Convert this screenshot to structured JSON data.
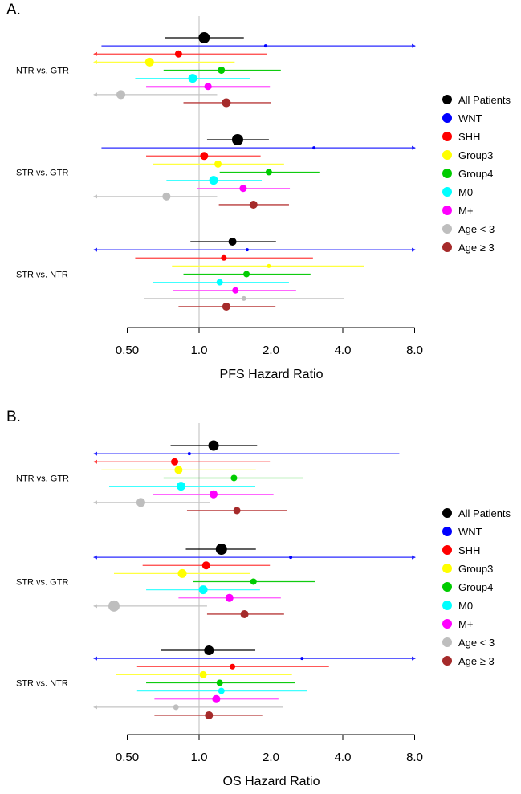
{
  "chart_data": [
    {
      "type": "forest",
      "panel_label": "A.",
      "xlabel": "PFS Hazard Ratio",
      "xscale": "log2",
      "xlim": [
        0.36,
        8.0
      ],
      "xticks": [
        0.5,
        1.0,
        2.0,
        4.0,
        8.0
      ],
      "xtick_labels": [
        "0.50",
        "1.0",
        "2.0",
        "4.0",
        "8.0"
      ],
      "reference_line": 1.0,
      "legend_position": "right",
      "groups": [
        {
          "label": "NTR vs. GTR",
          "rows": [
            {
              "series": "All Patients",
              "hr": 1.05,
              "lo": 0.72,
              "hi": 1.54,
              "weight": 7
            },
            {
              "series": "WNT",
              "hr": 1.9,
              "lo": 0.39,
              "hi": 10,
              "weight": 2
            },
            {
              "series": "SHH",
              "hr": 0.82,
              "lo": 0.3,
              "hi": 1.93,
              "weight": 4.5
            },
            {
              "series": "Group3",
              "hr": 0.62,
              "lo": 0.3,
              "hi": 1.41,
              "weight": 5.5
            },
            {
              "series": "Group4",
              "hr": 1.24,
              "lo": 0.71,
              "hi": 2.2,
              "weight": 4.5
            },
            {
              "series": "M0",
              "hr": 0.94,
              "lo": 0.54,
              "hi": 1.64,
              "weight": 5.5
            },
            {
              "series": "M+",
              "hr": 1.09,
              "lo": 0.6,
              "hi": 1.98,
              "weight": 4.5
            },
            {
              "series": "Age < 3",
              "hr": 0.47,
              "lo": 0.3,
              "hi": 1.19,
              "weight": 5.5
            },
            {
              "series": "Age ≥ 3",
              "hr": 1.3,
              "lo": 0.86,
              "hi": 2.0,
              "weight": 5.5
            }
          ]
        },
        {
          "label": "STR vs. GTR",
          "rows": [
            {
              "series": "All Patients",
              "hr": 1.45,
              "lo": 1.08,
              "hi": 1.96,
              "weight": 7
            },
            {
              "series": "WNT",
              "hr": 3.03,
              "lo": 0.39,
              "hi": 10,
              "weight": 2
            },
            {
              "series": "SHH",
              "hr": 1.05,
              "lo": 0.6,
              "hi": 1.81,
              "weight": 5
            },
            {
              "series": "Group3",
              "hr": 1.2,
              "lo": 0.64,
              "hi": 2.27,
              "weight": 4.5
            },
            {
              "series": "Group4",
              "hr": 1.96,
              "lo": 1.22,
              "hi": 3.19,
              "weight": 4
            },
            {
              "series": "M0",
              "hr": 1.15,
              "lo": 0.73,
              "hi": 1.83,
              "weight": 5.5
            },
            {
              "series": "M+",
              "hr": 1.53,
              "lo": 0.98,
              "hi": 2.4,
              "weight": 4.5
            },
            {
              "series": "Age < 3",
              "hr": 0.73,
              "lo": 0.3,
              "hi": 1.19,
              "weight": 5
            },
            {
              "series": "Age ≥ 3",
              "hr": 1.69,
              "lo": 1.21,
              "hi": 2.38,
              "weight": 5
            }
          ]
        },
        {
          "label": "STR vs. NTR",
          "rows": [
            {
              "series": "All Patients",
              "hr": 1.38,
              "lo": 0.92,
              "hi": 2.1,
              "weight": 5
            },
            {
              "series": "WNT",
              "hr": 1.59,
              "lo": 0.3,
              "hi": 10,
              "weight": 2
            },
            {
              "series": "SHH",
              "hr": 1.27,
              "lo": 0.54,
              "hi": 3.0,
              "weight": 3.5
            },
            {
              "series": "Group3",
              "hr": 1.96,
              "lo": 0.77,
              "hi": 4.93,
              "weight": 2.5
            },
            {
              "series": "Group4",
              "hr": 1.58,
              "lo": 0.86,
              "hi": 2.93,
              "weight": 4
            },
            {
              "series": "M0",
              "hr": 1.22,
              "lo": 0.64,
              "hi": 2.38,
              "weight": 4
            },
            {
              "series": "M+",
              "hr": 1.42,
              "lo": 0.78,
              "hi": 2.55,
              "weight": 4
            },
            {
              "series": "Age < 3",
              "hr": 1.54,
              "lo": 0.59,
              "hi": 4.06,
              "weight": 3
            },
            {
              "series": "Age ≥ 3",
              "hr": 1.3,
              "lo": 0.82,
              "hi": 2.09,
              "weight": 5
            }
          ]
        }
      ]
    },
    {
      "type": "forest",
      "panel_label": "B.",
      "xlabel": "OS Hazard Ratio",
      "xscale": "log2",
      "xlim": [
        0.36,
        8.0
      ],
      "xticks": [
        0.5,
        1.0,
        2.0,
        4.0,
        8.0
      ],
      "xtick_labels": [
        "0.50",
        "1.0",
        "2.0",
        "4.0",
        "8.0"
      ],
      "reference_line": 1.0,
      "legend_position": "right",
      "groups": [
        {
          "label": "NTR vs. GTR",
          "rows": [
            {
              "series": "All Patients",
              "hr": 1.15,
              "lo": 0.76,
              "hi": 1.75,
              "weight": 6.5
            },
            {
              "series": "WNT",
              "hr": 0.91,
              "lo": 0.3,
              "hi": 6.9,
              "weight": 2
            },
            {
              "series": "SHH",
              "hr": 0.79,
              "lo": 0.3,
              "hi": 1.98,
              "weight": 4.5
            },
            {
              "series": "Group3",
              "hr": 0.82,
              "lo": 0.39,
              "hi": 1.73,
              "weight": 5
            },
            {
              "series": "Group4",
              "hr": 1.4,
              "lo": 0.71,
              "hi": 2.73,
              "weight": 4
            },
            {
              "series": "M0",
              "hr": 0.84,
              "lo": 0.42,
              "hi": 1.72,
              "weight": 5.5
            },
            {
              "series": "M+",
              "hr": 1.15,
              "lo": 0.64,
              "hi": 2.05,
              "weight": 5
            },
            {
              "series": "Age < 3",
              "hr": 0.57,
              "lo": 0.3,
              "hi": 1.11,
              "weight": 5.5
            },
            {
              "series": "Age ≥ 3",
              "hr": 1.44,
              "lo": 0.89,
              "hi": 2.33,
              "weight": 4.5
            }
          ]
        },
        {
          "label": "STR vs. GTR",
          "rows": [
            {
              "series": "All Patients",
              "hr": 1.24,
              "lo": 0.88,
              "hi": 1.73,
              "weight": 7
            },
            {
              "series": "WNT",
              "hr": 2.42,
              "lo": 0.3,
              "hi": 10,
              "weight": 2
            },
            {
              "series": "SHH",
              "hr": 1.07,
              "lo": 0.58,
              "hi": 1.98,
              "weight": 5
            },
            {
              "series": "Group3",
              "hr": 0.85,
              "lo": 0.44,
              "hi": 1.64,
              "weight": 5.5
            },
            {
              "series": "Group4",
              "hr": 1.69,
              "lo": 0.94,
              "hi": 3.05,
              "weight": 4
            },
            {
              "series": "M0",
              "hr": 1.04,
              "lo": 0.6,
              "hi": 1.8,
              "weight": 5.5
            },
            {
              "series": "M+",
              "hr": 1.34,
              "lo": 0.82,
              "hi": 2.2,
              "weight": 5
            },
            {
              "series": "Age < 3",
              "hr": 0.44,
              "lo": 0.3,
              "hi": 1.08,
              "weight": 7
            },
            {
              "series": "Age ≥ 3",
              "hr": 1.55,
              "lo": 1.08,
              "hi": 2.27,
              "weight": 5
            }
          ]
        },
        {
          "label": "STR vs. NTR",
          "rows": [
            {
              "series": "All Patients",
              "hr": 1.1,
              "lo": 0.69,
              "hi": 1.72,
              "weight": 6
            },
            {
              "series": "WNT",
              "hr": 2.7,
              "lo": 0.3,
              "hi": 10,
              "weight": 2
            },
            {
              "series": "SHH",
              "hr": 1.38,
              "lo": 0.55,
              "hi": 3.5,
              "weight": 3.5
            },
            {
              "series": "Group3",
              "hr": 1.04,
              "lo": 0.45,
              "hi": 2.45,
              "weight": 4.5
            },
            {
              "series": "Group4",
              "hr": 1.22,
              "lo": 0.6,
              "hi": 2.53,
              "weight": 4
            },
            {
              "series": "M0",
              "hr": 1.24,
              "lo": 0.55,
              "hi": 2.84,
              "weight": 4
            },
            {
              "series": "M+",
              "hr": 1.18,
              "lo": 0.65,
              "hi": 2.15,
              "weight": 5
            },
            {
              "series": "Age < 3",
              "hr": 0.8,
              "lo": 0.3,
              "hi": 2.24,
              "weight": 3.5
            },
            {
              "series": "Age ≥ 3",
              "hr": 1.1,
              "lo": 0.65,
              "hi": 1.84,
              "weight": 5
            }
          ]
        }
      ]
    }
  ],
  "legend": [
    {
      "label": "All Patients",
      "color": "#000000",
      "line": "#000000"
    },
    {
      "label": "WNT",
      "color": "#0000ff",
      "line": "#2a2aff"
    },
    {
      "label": "SHH",
      "color": "#ff0000",
      "line": "#ff4040"
    },
    {
      "label": "Group3",
      "color": "#ffff00",
      "line": "#ffff40"
    },
    {
      "label": "Group4",
      "color": "#00cc00",
      "line": "#10cc10"
    },
    {
      "label": "M0",
      "color": "#00ffff",
      "line": "#40ffff"
    },
    {
      "label": "M+",
      "color": "#ff00ff",
      "line": "#ff50ff"
    },
    {
      "label": "Age < 3",
      "color": "#bebebe",
      "line": "#c4c4c4"
    },
    {
      "label": "Age ≥ 3",
      "color": "#a52a2a",
      "line": "#b83a3a"
    }
  ]
}
